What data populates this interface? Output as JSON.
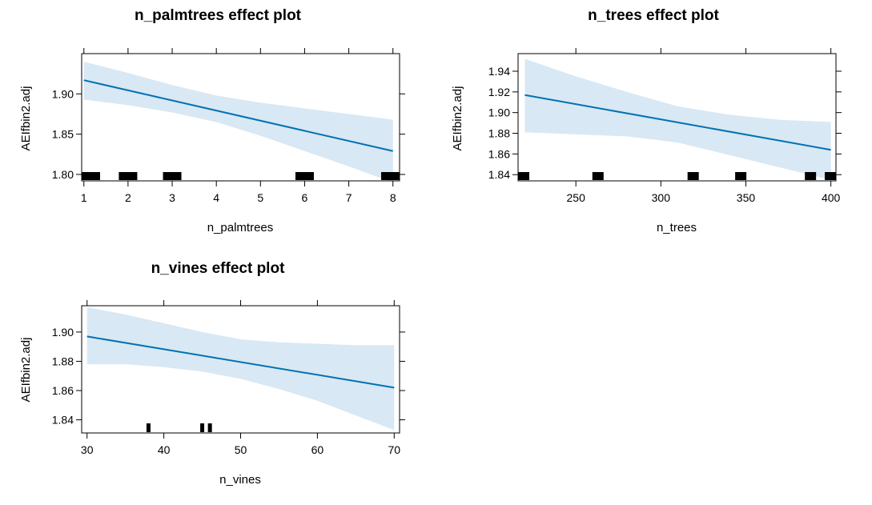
{
  "chart_data": [
    {
      "type": "line",
      "title": "n_palmtrees effect plot",
      "xlabel": "n_palmtrees",
      "ylabel": "AEIfbin2.adj",
      "xlim": [
        0.95,
        8.15
      ],
      "ylim": [
        1.792,
        1.95
      ],
      "x_ticks": [
        1,
        2,
        3,
        4,
        5,
        6,
        7,
        8
      ],
      "y_ticks": [
        1.8,
        1.85,
        1.9
      ],
      "y_tick_labels": [
        "1.80",
        "1.85",
        "1.90"
      ],
      "fit": {
        "x": [
          1,
          8
        ],
        "y": [
          1.917,
          1.829
        ]
      },
      "band_upper": {
        "x": [
          1,
          2,
          3,
          4,
          5,
          6,
          7,
          8
        ],
        "y": [
          1.94,
          1.926,
          1.911,
          1.898,
          1.889,
          1.882,
          1.875,
          1.868
        ]
      },
      "band_lower": {
        "x": [
          1,
          2,
          3,
          4,
          5,
          6,
          7,
          8
        ],
        "y": [
          1.893,
          1.886,
          1.877,
          1.865,
          1.848,
          1.829,
          1.81,
          1.79
        ]
      },
      "rug_x": [
        1,
        2,
        3,
        6,
        8
      ],
      "line_color": "#0072b2",
      "band_color": "#d8e8f4"
    },
    {
      "type": "line",
      "title": "n_trees effect plot",
      "xlabel": "n_trees",
      "ylabel": "AEIfbin2.adj",
      "xlim": [
        216,
        403
      ],
      "ylim": [
        1.834,
        1.957
      ],
      "x_ticks": [
        250,
        300,
        350,
        400
      ],
      "y_ticks": [
        1.84,
        1.86,
        1.88,
        1.9,
        1.92,
        1.94
      ],
      "y_tick_labels": [
        "1.84",
        "1.86",
        "1.88",
        "1.90",
        "1.92",
        "1.94"
      ],
      "fit": {
        "x": [
          220,
          400
        ],
        "y": [
          1.917,
          1.864
        ]
      },
      "band_upper": {
        "x": [
          220,
          250,
          280,
          310,
          340,
          370,
          400
        ],
        "y": [
          1.952,
          1.935,
          1.92,
          1.906,
          1.898,
          1.893,
          1.891
        ]
      },
      "band_lower": {
        "x": [
          220,
          250,
          280,
          310,
          340,
          370,
          400
        ],
        "y": [
          1.881,
          1.879,
          1.877,
          1.871,
          1.859,
          1.847,
          1.835
        ]
      },
      "rug_x": [
        218,
        263,
        319,
        347,
        388,
        403
      ],
      "line_color": "#0072b2",
      "band_color": "#d8e8f4"
    },
    {
      "type": "line",
      "title": "n_vines effect plot",
      "xlabel": "n_vines",
      "ylabel": "AEIfbin2.adj",
      "xlim": [
        29.3,
        70.7
      ],
      "ylim": [
        1.831,
        1.918
      ],
      "x_ticks": [
        30,
        40,
        50,
        60,
        70
      ],
      "y_ticks": [
        1.84,
        1.86,
        1.88,
        1.9
      ],
      "y_tick_labels": [
        "1.84",
        "1.86",
        "1.88",
        "1.90"
      ],
      "fit": {
        "x": [
          30,
          70
        ],
        "y": [
          1.897,
          1.862
        ]
      },
      "band_upper": {
        "x": [
          30,
          35,
          40,
          45,
          50,
          55,
          60,
          65,
          70
        ],
        "y": [
          1.917,
          1.912,
          1.906,
          1.9,
          1.895,
          1.893,
          1.892,
          1.891,
          1.891
        ]
      },
      "band_lower": {
        "x": [
          30,
          35,
          40,
          45,
          50,
          55,
          60,
          65,
          70
        ],
        "y": [
          1.878,
          1.878,
          1.876,
          1.873,
          1.868,
          1.861,
          1.853,
          1.843,
          1.833
        ]
      },
      "rug_x": [
        38,
        45,
        46
      ],
      "line_color": "#0072b2",
      "band_color": "#d8e8f4"
    }
  ]
}
